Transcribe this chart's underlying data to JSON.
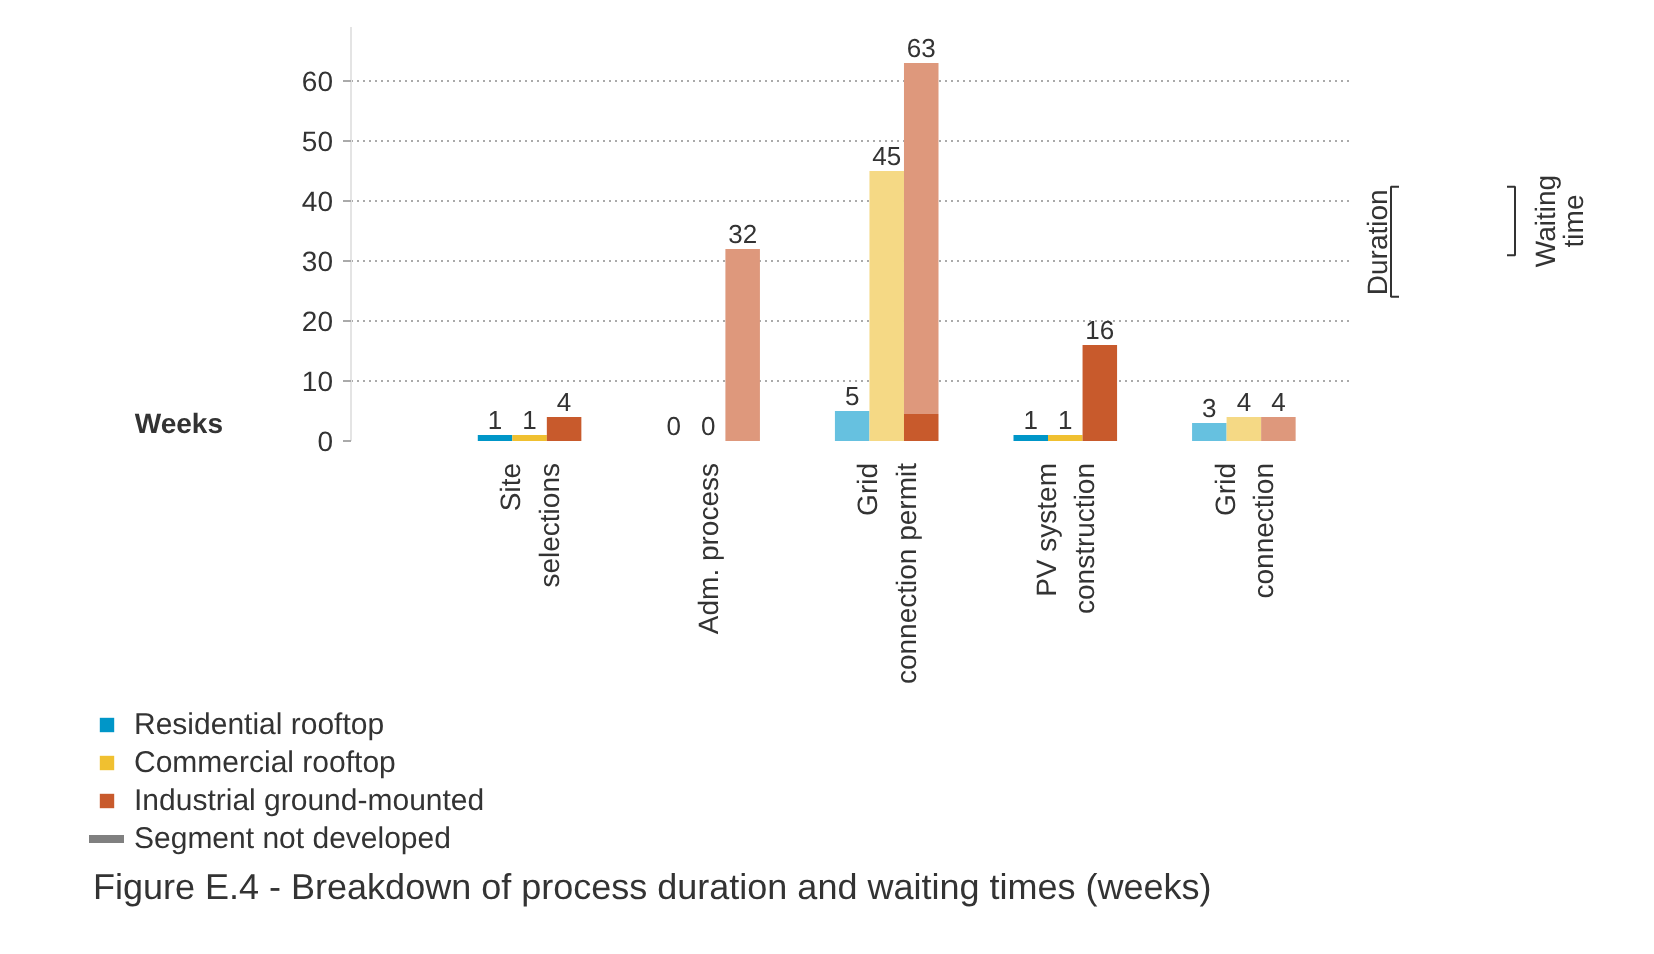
{
  "chart_data": {
    "type": "bar",
    "title": "Figure E.4 - Breakdown of process duration and waiting times (weeks)",
    "ylabel": "Weeks",
    "categories": [
      "Site\nselections",
      "Adm. process",
      "Grid\nconnection permit",
      "PV system\nconstruction",
      "Grid\nconnection"
    ],
    "series": [
      {
        "name": "Residential rooftop",
        "color": "#0096c8",
        "values": [
          1,
          0,
          null,
          1,
          null
        ]
      },
      {
        "color": "#66c1e0",
        "values": [
          null,
          null,
          5,
          null,
          3
        ],
        "base": [
          null,
          null,
          0,
          null,
          0
        ]
      },
      {
        "name": "Commercial rooftop",
        "color": "#f0c030",
        "values": [
          1,
          0,
          null,
          1,
          null
        ]
      },
      {
        "color": "#f5d985",
        "values": [
          null,
          null,
          45,
          null,
          4
        ],
        "base": [
          null,
          null,
          0,
          null,
          0
        ]
      },
      {
        "name": "Industrial ground-mounted",
        "color": "#c85a2c",
        "values": [
          4,
          null,
          4.5,
          16,
          null
        ]
      },
      {
        "color": "#de987c",
        "values": [
          null,
          32,
          58.5,
          null,
          4
        ],
        "base": [
          null,
          0,
          4.5,
          null,
          0
        ]
      },
      {
        "name": "Segment not developed",
        "color": "#808080",
        "values": [
          null,
          null,
          null,
          null,
          null
        ]
      }
    ],
    "totals": [
      [
        "1",
        "1",
        "4"
      ],
      [
        "0",
        "0",
        "32"
      ],
      [
        "5",
        "45",
        "63"
      ],
      [
        "1",
        "1",
        "16"
      ],
      [
        "3",
        "4",
        "4"
      ]
    ],
    "annotations": [
      "Duration",
      "Waiting time"
    ],
    "ylim": [
      0,
      69
    ],
    "yticks": [
      0,
      10,
      20,
      30,
      40,
      50,
      60
    ],
    "grid": "y",
    "legend": "bottom left"
  }
}
